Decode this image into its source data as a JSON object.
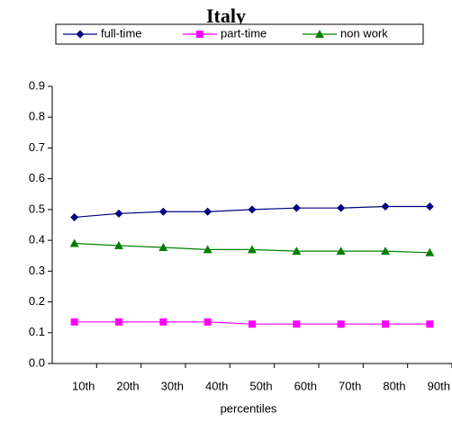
{
  "chart_data": {
    "type": "line",
    "title": "Italy",
    "x_label": "percentiles",
    "categories": [
      "10th",
      "20th",
      "30th",
      "40th",
      "50th",
      "60th",
      "70th",
      "80th",
      "90th"
    ],
    "series": [
      {
        "name": "full-time",
        "color": "#000080",
        "marker": "diamond",
        "values": [
          0.475,
          0.487,
          0.493,
          0.493,
          0.5,
          0.505,
          0.505,
          0.51,
          0.51
        ]
      },
      {
        "name": "part-time",
        "color": "#ff00ff",
        "marker": "square",
        "values": [
          0.135,
          0.135,
          0.135,
          0.135,
          0.128,
          0.128,
          0.128,
          0.128,
          0.128
        ]
      },
      {
        "name": "non work",
        "color": "#008000",
        "marker": "triangle",
        "values": [
          0.39,
          0.383,
          0.377,
          0.37,
          0.37,
          0.365,
          0.365,
          0.365,
          0.36
        ]
      }
    ],
    "ylim": [
      0,
      0.9
    ],
    "yticks": [
      {
        "value": 0,
        "label": "0.0"
      },
      0.1,
      0.2,
      0.3,
      0.4,
      0.5,
      0.6,
      0.7,
      0.8,
      0.9
    ],
    "grid": false,
    "legend": "top"
  }
}
